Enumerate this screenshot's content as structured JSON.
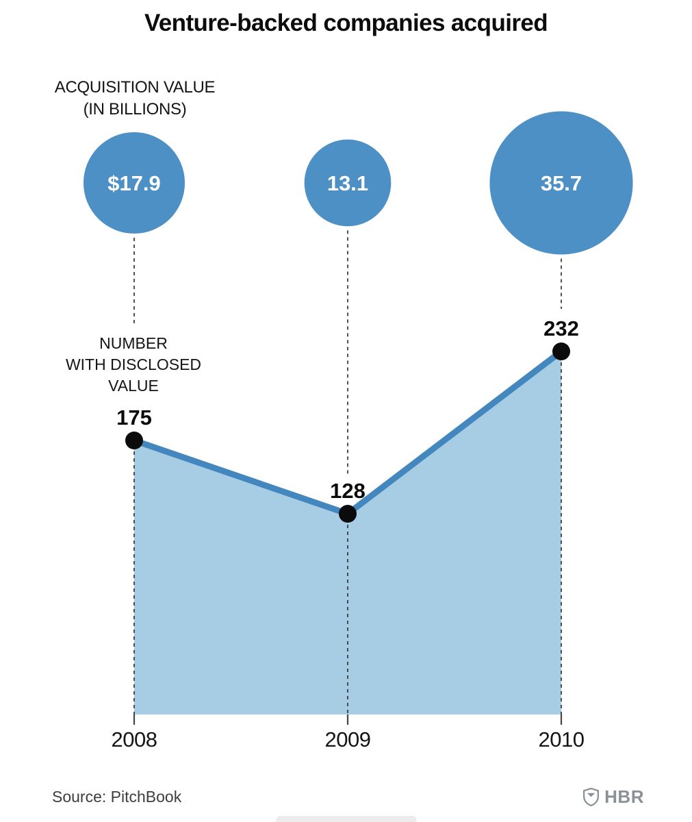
{
  "title": "Venture-backed companies acquired",
  "labels": {
    "acquisition": [
      "ACQUISITION VALUE",
      "(IN BILLIONS)"
    ],
    "number": [
      "NUMBER",
      "WITH DISCLOSED",
      "VALUE"
    ]
  },
  "chart_data": {
    "type": "line",
    "subtype": "area-line-with-bubble-annotations",
    "categories": [
      "2008",
      "2009",
      "2010"
    ],
    "series": [
      {
        "name": "Acquisition value (in billions)",
        "render": "bubble",
        "values": [
          17.9,
          13.1,
          35.7
        ],
        "labels": [
          "$17.9",
          "13.1",
          "35.7"
        ]
      },
      {
        "name": "Number with disclosed value",
        "render": "area-line",
        "values": [
          175,
          128,
          232
        ],
        "labels": [
          "175",
          "128",
          "232"
        ]
      }
    ],
    "ylim": [
      0,
      245
    ],
    "grid": false,
    "legend": "inline-annotations",
    "colors": {
      "bubble": "#4d90c5",
      "line": "#4387be",
      "area": "#a6cde4",
      "dot": "#0b0b0b",
      "connector": "#3c3c3c",
      "tick": "#444444"
    }
  },
  "footer": {
    "source": "Source: PitchBook",
    "brand": "HBR"
  }
}
